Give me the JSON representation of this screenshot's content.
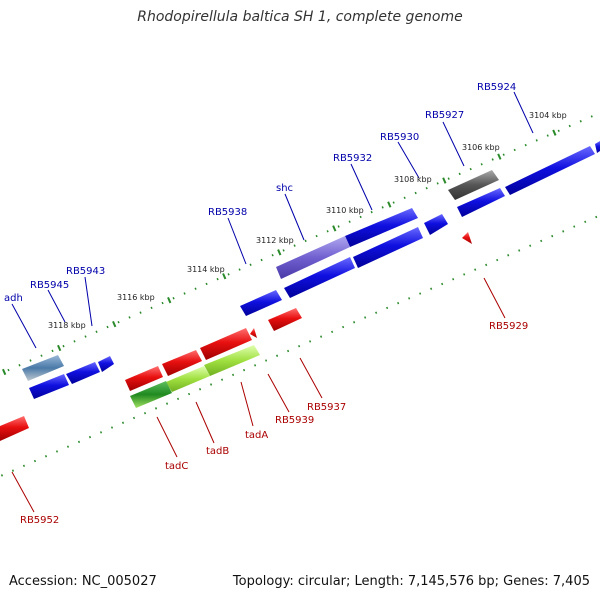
{
  "header": {
    "title": "Rhodopirellula baltica SH 1, complete genome"
  },
  "footer": {
    "accession": "Accession: NC_005027",
    "topology": "Topology: circular; Length: 7,145,576 bp; Genes: 7,405"
  },
  "map": {
    "kbp_ticks": [
      "3104 kbp",
      "3106 kbp",
      "3108 kbp",
      "3110 kbp",
      "3112 kbp",
      "3114 kbp",
      "3116 kbp",
      "3118 kbp"
    ],
    "top_genes": [
      "RB5924",
      "RB5927",
      "RB5930",
      "RB5932",
      "shc",
      "RB5938",
      "RB5943",
      "RB5945",
      "adh"
    ],
    "bottom_genes": [
      "RB5929",
      "RB5937",
      "RB5939",
      "tadA",
      "tadB",
      "tadC",
      "RB5952"
    ],
    "colors": {
      "forward_cds": "#1010e0",
      "reverse_cds": "#e81010",
      "backbone": "#8a8a8a",
      "tick": "#2a8a2a",
      "shc_highlight": "#7060d0",
      "tad_highlight": "#a0e040",
      "top_label": "#0000aa",
      "bottom_label": "#aa0000"
    }
  }
}
